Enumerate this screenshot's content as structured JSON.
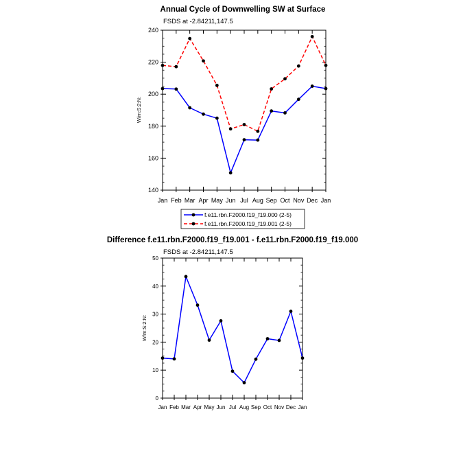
{
  "chart_data": [
    {
      "type": "line",
      "title": "Annual Cycle of Downwelling SW at Surface",
      "subtitle": "FSDS at -2.84211,147.5",
      "xlabel": "",
      "ylabel": "W/m:S:2:N:",
      "categories": [
        "Jan",
        "Feb",
        "Mar",
        "Apr",
        "May",
        "Jun",
        "Jul",
        "Aug",
        "Sep",
        "Oct",
        "Nov",
        "Dec",
        "Jan"
      ],
      "ylim": [
        140,
        240
      ],
      "yticks": [
        "140",
        "160",
        "180",
        "200",
        "220",
        "240"
      ],
      "grid": false,
      "legend_position": "bottom",
      "series": [
        {
          "name": "f.e11.rbn.F2000.f19_f19.000 (2-5)",
          "color": "#0000ff",
          "dash": "solid",
          "values": [
            203.5,
            203.2,
            191.5,
            187.5,
            185.0,
            150.8,
            171.5,
            171.3,
            189.5,
            188.3,
            196.8,
            205.0,
            203.5
          ]
        },
        {
          "name": "f.e11.rbn.F2000.f19_f19.001 (2-5)",
          "color": "#ff0000",
          "dash": "dashed",
          "values": [
            218.0,
            217.2,
            234.8,
            220.8,
            205.5,
            178.3,
            181.0,
            176.8,
            203.3,
            209.6,
            217.6,
            236.0,
            218.0
          ]
        }
      ]
    },
    {
      "type": "line",
      "title": "Difference f.e11.rbn.F2000.f19_f19.001 - f.e11.rbn.F2000.f19_f19.000",
      "subtitle": "FSDS at -2.84211,147.5",
      "xlabel": "",
      "ylabel": "W/m:S:2:N:",
      "categories": [
        "Jan",
        "Feb",
        "Mar",
        "Apr",
        "May",
        "Jun",
        "Jul",
        "Aug",
        "Sep",
        "Oct",
        "Nov",
        "Dec",
        "Jan"
      ],
      "ylim": [
        0,
        50
      ],
      "yticks": [
        "0",
        "10",
        "20",
        "30",
        "40",
        "50"
      ],
      "grid": false,
      "series": [
        {
          "color": "#0000ff",
          "dash": "solid",
          "values": [
            14.3,
            14.0,
            43.4,
            33.2,
            20.7,
            27.6,
            9.6,
            5.5,
            13.9,
            21.2,
            20.6,
            31.0,
            14.3
          ]
        }
      ]
    }
  ]
}
